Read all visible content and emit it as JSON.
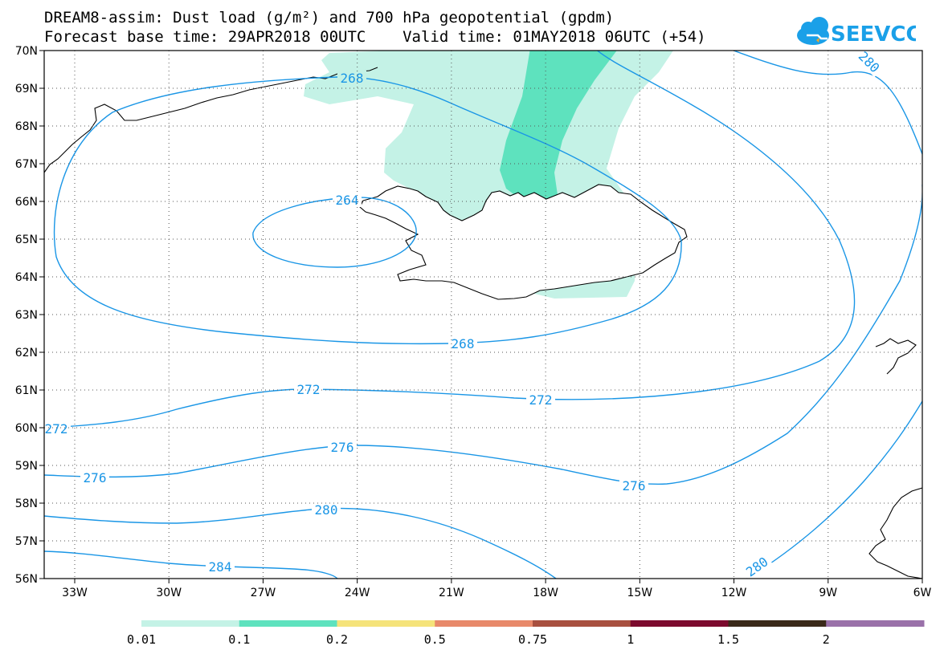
{
  "title": {
    "line1": "DREAM8-assim: Dust load (g/m²) and 700 hPa geopotential (gpdm)",
    "line2": "Forecast base time: 29APR2018 00UTC    Valid time: 01MAY2018 06UTC (+54)"
  },
  "logo": {
    "text": "SEEVCCC",
    "icon": "cloud-icon",
    "color": "#1aa0e8"
  },
  "map": {
    "lat_labels": [
      "70N",
      "69N",
      "68N",
      "67N",
      "66N",
      "65N",
      "64N",
      "63N",
      "62N",
      "61N",
      "60N",
      "59N",
      "58N",
      "57N",
      "56N"
    ],
    "lon_labels": [
      "33W",
      "30W",
      "27W",
      "24W",
      "21W",
      "18W",
      "15W",
      "12W",
      "9W",
      "6W"
    ],
    "contour_color": "#1a96e6",
    "contour_labels": [
      "268",
      "264",
      "280",
      "268",
      "272",
      "272",
      "272",
      "276",
      "276",
      "276",
      "280",
      "280",
      "284"
    ]
  },
  "colorbar": {
    "colors": [
      "#c4f2e6",
      "#5ee2be",
      "#f5e37a",
      "#e8896a",
      "#a8503f",
      "#7c0a2e",
      "#3b2a1a",
      "#9a71a9"
    ],
    "tick_labels": [
      "0.01",
      "0.1",
      "0.2",
      "0.5",
      "0.75",
      "1",
      "1.5",
      "2"
    ]
  }
}
